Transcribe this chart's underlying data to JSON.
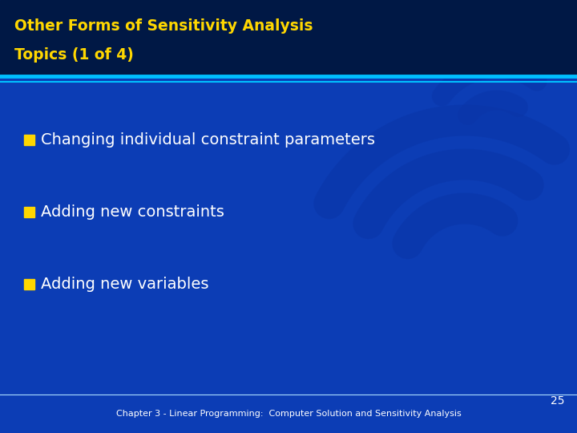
{
  "title_line1": "Other Forms of Sensitivity Analysis",
  "title_line2": "Topics (1 of 4)",
  "title_color": "#FFD700",
  "title_fontsize": 13.5,
  "title_bg_color": "#001845",
  "body_bg_color": "#0C3DB5",
  "header_line_color": "#00BFFF",
  "bullet_points": [
    "Changing individual constraint parameters",
    "Adding new constraints",
    "Adding new variables"
  ],
  "bullet_color": "#FFD700",
  "bullet_text_color": "#FFFFFF",
  "bullet_fontsize": 14,
  "footer_text": "Chapter 3 - Linear Programming:  Computer Solution and Sensitivity Analysis",
  "footer_color": "#FFFFFF",
  "footer_fontsize": 8,
  "page_number": "25",
  "page_number_color": "#FFFFFF",
  "page_number_fontsize": 10,
  "footer_bg_color": "#0C3DB5"
}
